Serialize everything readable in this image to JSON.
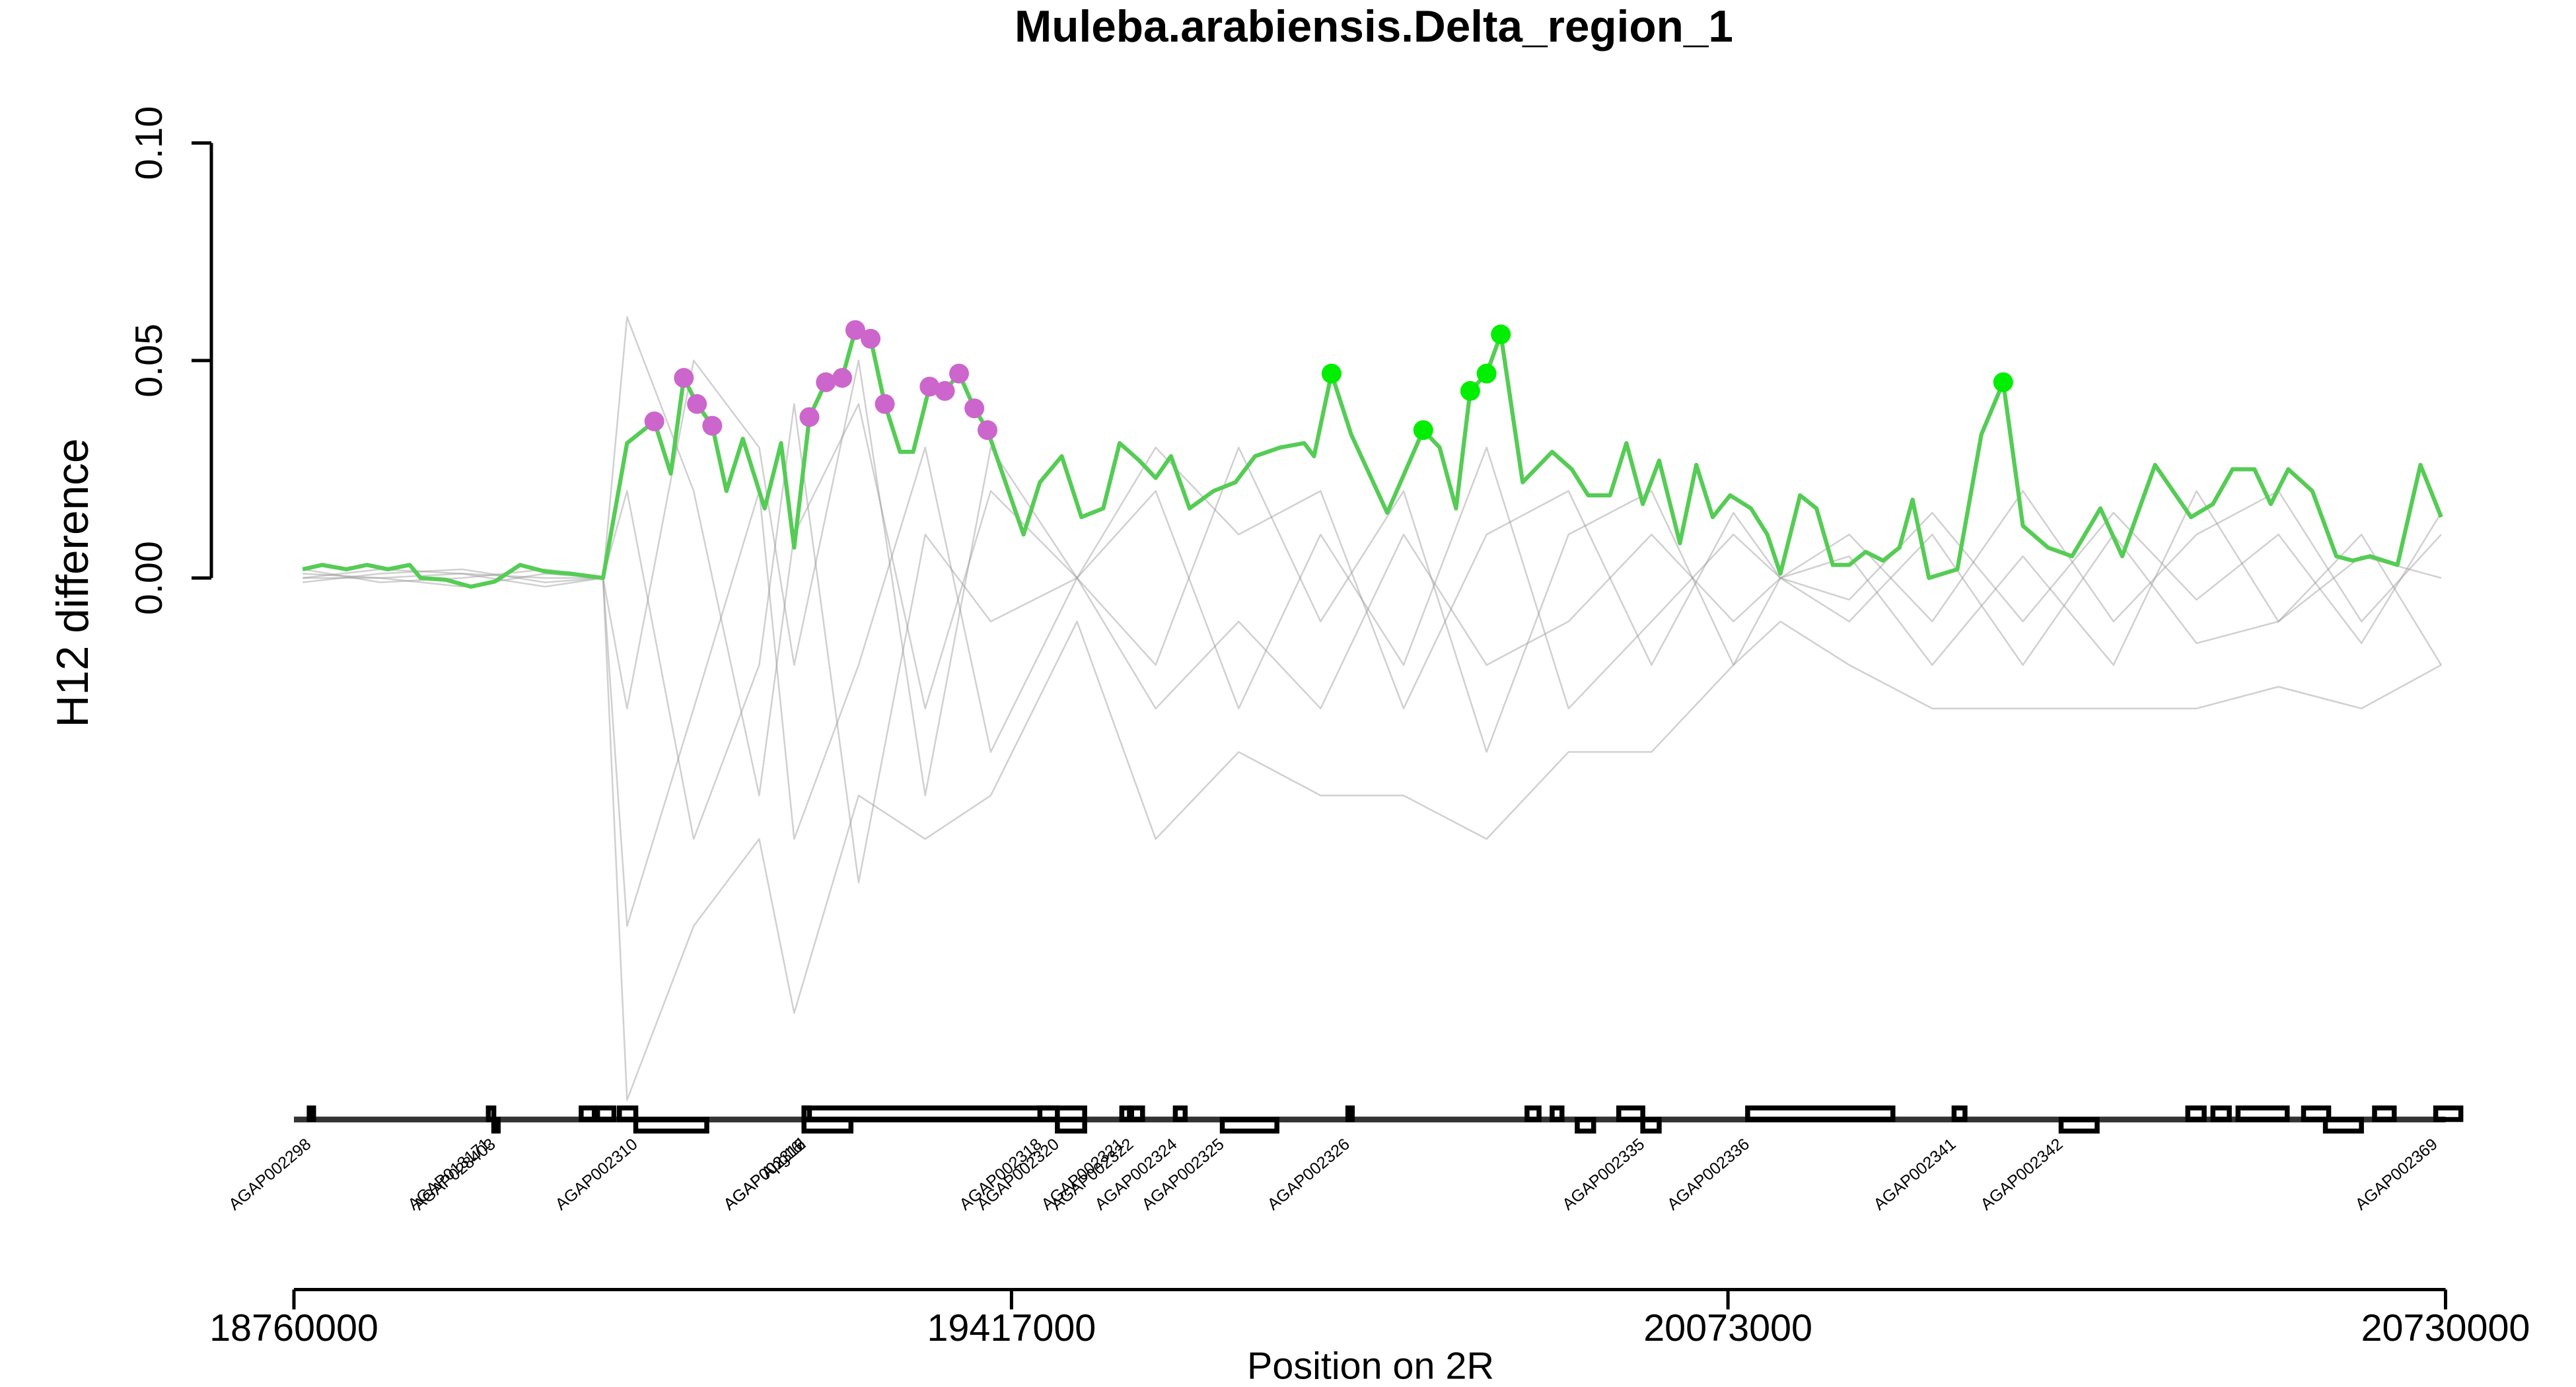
{
  "chart_data": {
    "type": "line",
    "title": "Muleba.arabiensis.Delta_region_1",
    "xlabel": "Position on 2R",
    "ylabel": "H12 difference",
    "xlim": [
      18760000,
      20730000
    ],
    "ylim": [
      -0.115,
      0.112
    ],
    "xticks": [
      18760000,
      19417000,
      20073000,
      20730000
    ],
    "yticks": [
      {
        "value": 0,
        "label": "0.00"
      },
      0.05,
      {
        "value": 0.1,
        "label": "0.10"
      }
    ],
    "series": [
      {
        "style": "line",
        "color": "rgba(150,150,150,0.45)",
        "x": [
          18768000,
          18839000,
          18914000,
          18990000,
          19043000,
          19065000,
          19126000,
          19186000,
          19218000,
          19277000,
          19338000,
          19398000,
          19477000,
          19549000,
          19625000,
          19700000,
          19776000,
          19852000,
          19927000,
          20003000,
          20078000,
          20121000,
          20184000,
          20260000,
          20343000,
          20426000,
          20502000,
          20577000,
          20653000,
          20726000
        ],
        "values": [
          0.001,
          0,
          -0.002,
          0.001,
          0,
          0.06,
          0.02,
          -0.05,
          0.01,
          0.04,
          -0.03,
          0.02,
          0,
          -0.02,
          0.03,
          -0.01,
          0.02,
          -0.04,
          0.01,
          0.02,
          -0.02,
          0,
          0.01,
          -0.01,
          0.02,
          -0.01,
          0.01,
          0.02,
          -0.01,
          0.01
        ]
      },
      {
        "style": "line",
        "color": "rgba(150,150,150,0.45)",
        "x": [
          18768000,
          18839000,
          18914000,
          18990000,
          19043000,
          19065000,
          19126000,
          19186000,
          19218000,
          19277000,
          19338000,
          19398000,
          19477000,
          19549000,
          19625000,
          19700000,
          19776000,
          19852000,
          19927000,
          20003000,
          20078000,
          20121000,
          20184000,
          20260000,
          20343000,
          20426000,
          20502000,
          20577000,
          20653000,
          20726000
        ],
        "values": [
          -0.001,
          0.001,
          0.002,
          -0.001,
          0,
          -0.08,
          -0.03,
          0.02,
          -0.06,
          -0.02,
          0.03,
          -0.04,
          0,
          0.02,
          -0.03,
          0.01,
          -0.02,
          0.03,
          -0.03,
          -0.01,
          0.01,
          0,
          -0.01,
          0.01,
          -0.02,
          0.01,
          -0.015,
          -0.01,
          0.01,
          -0.02
        ]
      },
      {
        "style": "line",
        "color": "rgba(150,150,150,0.45)",
        "x": [
          18768000,
          18839000,
          18914000,
          18990000,
          19043000,
          19065000,
          19126000,
          19186000,
          19218000,
          19277000,
          19338000,
          19398000,
          19477000,
          19549000,
          19625000,
          19700000,
          19776000,
          19852000,
          19927000,
          20003000,
          20078000,
          20121000,
          20184000,
          20260000,
          20343000,
          20426000,
          20502000,
          20577000,
          20653000,
          20726000
        ],
        "values": [
          0.002,
          -0.001,
          0,
          0.002,
          0,
          0.02,
          -0.06,
          -0.02,
          0.04,
          -0.07,
          0.01,
          -0.01,
          0,
          -0.03,
          -0.01,
          -0.03,
          0.01,
          -0.02,
          -0.01,
          0.01,
          -0.01,
          0,
          0.005,
          -0.02,
          0.005,
          -0.02,
          0.02,
          -0.01,
          0.005,
          0
        ]
      },
      {
        "style": "line",
        "color": "rgba(150,150,150,0.45)",
        "x": [
          18768000,
          18839000,
          18914000,
          18990000,
          19043000,
          19065000,
          19126000,
          19186000,
          19218000,
          19277000,
          19338000,
          19398000,
          19477000,
          19549000,
          19625000,
          19700000,
          19776000,
          19852000,
          19927000,
          20003000,
          20078000,
          20121000,
          20184000,
          20260000,
          20343000,
          20426000,
          20502000,
          20577000,
          20653000,
          20726000
        ],
        "values": [
          0,
          0.002,
          0.001,
          -0.002,
          0,
          -0.03,
          0.05,
          0.03,
          -0.02,
          0.05,
          -0.05,
          0.03,
          0,
          0.03,
          0.01,
          0.02,
          -0.03,
          0.01,
          0.02,
          -0.02,
          0.015,
          0,
          -0.005,
          0.015,
          -0.01,
          0.015,
          -0.005,
          0.01,
          -0.015,
          0.015
        ]
      },
      {
        "style": "line",
        "color": "rgba(150,150,150,0.45)",
        "x": [
          18768000,
          18839000,
          18914000,
          18990000,
          19043000,
          19065000,
          19126000,
          19186000,
          19218000,
          19277000,
          19338000,
          19398000,
          19477000,
          19549000,
          19625000,
          19700000,
          19776000,
          19852000,
          19927000,
          20003000,
          20078000,
          20121000,
          20184000,
          20260000,
          20343000,
          20426000,
          20502000,
          20577000,
          20653000,
          20726000
        ],
        "values": [
          0,
          0,
          0.001,
          0,
          0,
          -0.12,
          -0.08,
          -0.06,
          -0.1,
          -0.05,
          -0.06,
          -0.05,
          -0.01,
          -0.06,
          -0.04,
          -0.05,
          -0.05,
          -0.06,
          -0.04,
          -0.04,
          -0.02,
          -0.01,
          -0.02,
          -0.03,
          -0.03,
          -0.03,
          -0.03,
          -0.025,
          -0.03,
          -0.02
        ]
      },
      {
        "style": "line",
        "color": "#55cc55",
        "x": [
          18768000,
          18786000,
          18808000,
          18827000,
          18846000,
          18866000,
          18876000,
          18899000,
          18922000,
          18944000,
          18967000,
          18990000,
          19013000,
          19043000,
          19065000,
          19090000,
          19105000,
          19117000,
          19129000,
          19143000,
          19156000,
          19171000,
          19191000,
          19206000,
          19218000,
          19232000,
          19247000,
          19262000,
          19274000,
          19288000,
          19301000,
          19315000,
          19327000,
          19342000,
          19356000,
          19369000,
          19383000,
          19395000,
          19428000,
          19443000,
          19463000,
          19481000,
          19501000,
          19516000,
          19534000,
          19549000,
          19563000,
          19580000,
          19602000,
          19622000,
          19640000,
          19663000,
          19685000,
          19694000,
          19710000,
          19728000,
          19761000,
          19794000,
          19809000,
          19824000,
          19837000,
          19852000,
          19865000,
          19885000,
          19912000,
          19930000,
          19945000,
          19965000,
          19980000,
          19995000,
          20010000,
          20029000,
          20044000,
          20059000,
          20075000,
          20094000,
          20109000,
          20121000,
          20139000,
          20154000,
          20169000,
          20184000,
          20199000,
          20215000,
          20230000,
          20242000,
          20257000,
          20283000,
          20305000,
          20325000,
          20343000,
          20366000,
          20388000,
          20414000,
          20434000,
          20464000,
          20497000,
          20517000,
          20535000,
          20555000,
          20570000,
          20586000,
          20608000,
          20630000,
          20645000,
          20661000,
          20686000,
          20707000,
          20726000
        ],
        "values": [
          0.002,
          0.003,
          0.002,
          0.003,
          0.002,
          0.003,
          0,
          -0.0004,
          -0.002,
          -0.0008,
          0.003,
          0.0015,
          0.001,
          0,
          0.031,
          0.036,
          0.024,
          0.046,
          0.04,
          0.035,
          0.02,
          0.032,
          0.016,
          0.031,
          0.007,
          0.037,
          0.045,
          0.046,
          0.057,
          0.055,
          0.04,
          0.029,
          0.029,
          0.044,
          0.043,
          0.047,
          0.039,
          0.034,
          0.01,
          0.022,
          0.028,
          0.014,
          0.016,
          0.031,
          0.027,
          0.023,
          0.028,
          0.016,
          0.02,
          0.022,
          0.028,
          0.03,
          0.031,
          0.028,
          0.047,
          0.033,
          0.015,
          0.034,
          0.03,
          0.016,
          0.043,
          0.047,
          0.056,
          0.022,
          0.029,
          0.025,
          0.019,
          0.019,
          0.031,
          0.017,
          0.027,
          0.008,
          0.026,
          0.014,
          0.019,
          0.016,
          0.01,
          0.001,
          0.019,
          0.016,
          0.003,
          0.003,
          0.006,
          0.004,
          0.007,
          0.018,
          0,
          0.002,
          0.033,
          0.045,
          0.012,
          0.007,
          0.005,
          0.016,
          0.005,
          0.026,
          0.014,
          0.017,
          0.025,
          0.025,
          0.017,
          0.025,
          0.02,
          0.005,
          0.004,
          0.005,
          0.003,
          0.026,
          0.014
        ]
      },
      {
        "style": "points",
        "color": "#cc66cc",
        "x": [
          19090000,
          19117000,
          19129000,
          19143000,
          19232000,
          19247000,
          19262000,
          19274000,
          19288000,
          19301000,
          19342000,
          19356000,
          19369000,
          19383000,
          19395000
        ],
        "values": [
          0.036,
          0.046,
          0.04,
          0.035,
          0.037,
          0.045,
          0.046,
          0.057,
          0.055,
          0.04,
          0.044,
          0.043,
          0.047,
          0.039,
          0.034
        ]
      },
      {
        "style": "points",
        "color": "#00ee00",
        "x": [
          19710000,
          19794000,
          19837000,
          19852000,
          19865000,
          20325000
        ],
        "values": [
          0.047,
          0.034,
          0.043,
          0.047,
          0.056,
          0.045
        ]
      }
    ],
    "genes": [
      {
        "name": "AGAP002298",
        "start": 18774000,
        "end": 18778000,
        "strand": "+"
      },
      {
        "name": "AGAP013171",
        "start": 18938000,
        "end": 18943000,
        "strand": "+"
      },
      {
        "name": "AGAP028403",
        "start": 18943000,
        "end": 18947000,
        "strand": "-"
      },
      {
        "name": null,
        "start": 19023000,
        "end": 19035000,
        "strand": "+"
      },
      {
        "name": null,
        "start": 19038000,
        "end": 19053000,
        "strand": "+"
      },
      {
        "name": null,
        "start": 19058000,
        "end": 19073000,
        "strand": "+"
      },
      {
        "name": "AGAP002310",
        "start": 19073000,
        "end": 19138000,
        "strand": "-"
      },
      {
        "name": "AGAP002312",
        "start": 19227000,
        "end": 19232000,
        "strand": "+"
      },
      {
        "name": "AGAP002316",
        "start": 19227000,
        "end": 19270000,
        "strand": "-"
      },
      {
        "name": "Apg16l",
        "start": 19227000,
        "end": 19484000,
        "strand": "+"
      },
      {
        "name": "AGAP002318",
        "start": 19443000,
        "end": 19459000,
        "strand": "+"
      },
      {
        "name": "AGAP002320",
        "start": 19459000,
        "end": 19484000,
        "strand": "-"
      },
      {
        "name": "AGAP002321",
        "start": 19518000,
        "end": 19525000,
        "strand": "+"
      },
      {
        "name": "AGAP002322",
        "start": 19527000,
        "end": 19537000,
        "strand": "+"
      },
      {
        "name": "AGAP002324",
        "start": 19567000,
        "end": 19576000,
        "strand": "+"
      },
      {
        "name": "AGAP002325",
        "start": 19610000,
        "end": 19660000,
        "strand": "-"
      },
      {
        "name": "AGAP002326",
        "start": 19725000,
        "end": 19729000,
        "strand": "+"
      },
      {
        "name": null,
        "start": 19889000,
        "end": 19900000,
        "strand": "+"
      },
      {
        "name": null,
        "start": 19912000,
        "end": 19921000,
        "strand": "+"
      },
      {
        "name": null,
        "start": 19935000,
        "end": 19950000,
        "strand": "-"
      },
      {
        "name": null,
        "start": 19973000,
        "end": 19995000,
        "strand": "+"
      },
      {
        "name": "AGAP002335",
        "start": 19995000,
        "end": 20010000,
        "strand": "-"
      },
      {
        "name": "AGAP002336",
        "start": 20091000,
        "end": 20224000,
        "strand": "+"
      },
      {
        "name": "AGAP002341",
        "start": 20280000,
        "end": 20290000,
        "strand": "+"
      },
      {
        "name": "AGAP002342",
        "start": 20378000,
        "end": 20411000,
        "strand": "-"
      },
      {
        "name": null,
        "start": 20494000,
        "end": 20509000,
        "strand": "+"
      },
      {
        "name": null,
        "start": 20517000,
        "end": 20532000,
        "strand": "+"
      },
      {
        "name": null,
        "start": 20540000,
        "end": 20585000,
        "strand": "+"
      },
      {
        "name": null,
        "start": 20600000,
        "end": 20623000,
        "strand": "+"
      },
      {
        "name": null,
        "start": 20620000,
        "end": 20653000,
        "strand": "-"
      },
      {
        "name": null,
        "start": 20665000,
        "end": 20683000,
        "strand": "+"
      },
      {
        "name": "AGAP002369",
        "start": 20721000,
        "end": 20744000,
        "strand": "+"
      }
    ]
  }
}
